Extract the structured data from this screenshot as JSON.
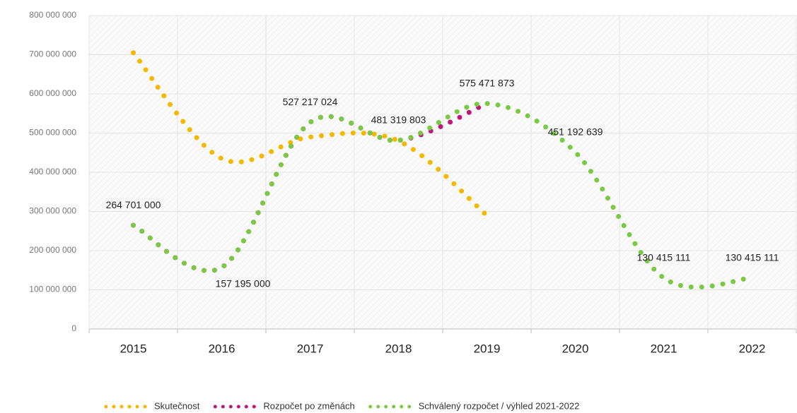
{
  "chart_data": {
    "type": "line",
    "categories": [
      "2015",
      "2016",
      "2017",
      "2018",
      "2019",
      "2020",
      "2021",
      "2022"
    ],
    "series": [
      {
        "name": "Skutečnost",
        "color": "#f5b800",
        "values": [
          705000000,
          435000000,
          490000000,
          480000000,
          290000000,
          null,
          null,
          null
        ]
      },
      {
        "name": "Rozpočet po změnách",
        "color": "#c0187a",
        "values": [
          264701000,
          157195000,
          527217024,
          481319803,
          575471873,
          null,
          null,
          null
        ]
      },
      {
        "name": "Schválený rozpočet / výhled 2021-2022",
        "color": "#7ac943",
        "values": [
          264701000,
          157195000,
          527217024,
          481319803,
          575471873,
          451192639,
          130415111,
          130415111
        ],
        "value_labels": [
          "264 701 000",
          "157 195 000",
          "527 217 024",
          "481 319 803",
          "575 471 873",
          "451 192 639",
          "130 415 111",
          "130 415 111"
        ]
      }
    ],
    "ylim": [
      0,
      800000000
    ],
    "yticks": [
      0,
      {
        "value": 100000000,
        "label": "100 000 000"
      },
      {
        "value": 200000000,
        "label": "200 000 000"
      },
      {
        "value": 300000000,
        "label": "300 000 000"
      },
      {
        "value": 400000000,
        "label": "400 000 000"
      },
      {
        "value": 500000000,
        "label": "500 000 000"
      },
      {
        "value": 600000000,
        "label": "600 000 000"
      },
      {
        "value": 700000000,
        "label": "700 000 000"
      },
      {
        "value": 800000000,
        "label": "800 000 000"
      }
    ],
    "grid": true,
    "legend": "bottom"
  }
}
